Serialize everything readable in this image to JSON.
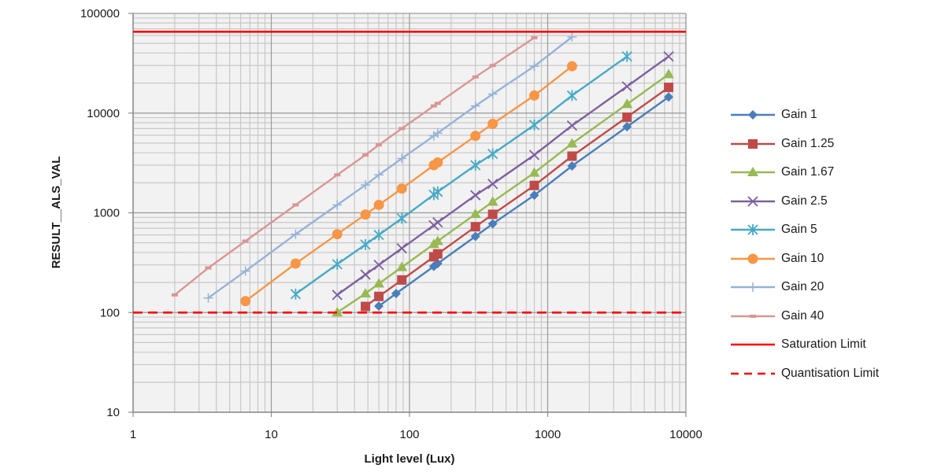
{
  "chart_data": {
    "type": "line",
    "title": "",
    "xlabel": "Light level (Lux)",
    "ylabel": "RESULT__ALS_VAL",
    "xscale": "log",
    "yscale": "log",
    "xlim": [
      1,
      10000
    ],
    "ylim": [
      10,
      100000
    ],
    "x_ticks": [
      "1",
      "10",
      "100",
      "1000",
      "10000"
    ],
    "y_ticks": [
      "10",
      "100",
      "1000",
      "10000",
      "100000"
    ],
    "grid": true,
    "legend_position": "right",
    "series": [
      {
        "name": "Gain 1",
        "color": "#4a7ebb",
        "marker": "diamond",
        "x": [
          60,
          80,
          150,
          160,
          300,
          400,
          800,
          1500,
          3750,
          7500
        ],
        "y": [
          116,
          155,
          290,
          310,
          580,
          775,
          1500,
          2950,
          7300,
          14500
        ]
      },
      {
        "name": "Gain 1.25",
        "color": "#be4b48",
        "marker": "square",
        "x": [
          48,
          60,
          88,
          150,
          160,
          300,
          400,
          800,
          1500,
          3750,
          7500
        ],
        "y": [
          115,
          145,
          212,
          362,
          387,
          725,
          965,
          1880,
          3700,
          9100,
          18100
        ]
      },
      {
        "name": "Gain 1.67",
        "color": "#98b954",
        "marker": "triangle",
        "x": [
          30,
          48,
          60,
          88,
          150,
          160,
          300,
          400,
          800,
          1500,
          3750,
          7500
        ],
        "y": [
          100,
          155,
          195,
          285,
          485,
          520,
          970,
          1290,
          2520,
          4950,
          12300,
          24500
        ]
      },
      {
        "name": "Gain 2.5",
        "color": "#7d60a0",
        "marker": "x",
        "x": [
          30,
          48,
          60,
          88,
          150,
          160,
          300,
          400,
          800,
          1500,
          3750,
          7500
        ],
        "y": [
          150,
          240,
          300,
          440,
          750,
          800,
          1500,
          1950,
          3800,
          7500,
          18500,
          37000
        ]
      },
      {
        "name": "Gain 5",
        "color": "#46aac5",
        "marker": "star",
        "x": [
          15,
          30,
          48,
          60,
          88,
          150,
          160,
          300,
          400,
          800,
          1500,
          3750
        ],
        "y": [
          153,
          305,
          480,
          600,
          880,
          1520,
          1620,
          3000,
          3900,
          7600,
          15000,
          37000
        ]
      },
      {
        "name": "Gain 10",
        "color": "#f79646",
        "marker": "circle",
        "x": [
          6.5,
          15,
          30,
          48,
          60,
          88,
          150,
          160,
          300,
          400,
          800,
          1500
        ],
        "y": [
          130,
          310,
          610,
          960,
          1200,
          1750,
          3000,
          3200,
          5900,
          7800,
          15000,
          29500
        ]
      },
      {
        "name": "Gain 20",
        "color": "#95b3d7",
        "marker": "plus",
        "x": [
          3.5,
          6.5,
          15,
          30,
          48,
          60,
          88,
          150,
          160,
          300,
          400,
          800,
          1500
        ],
        "y": [
          140,
          260,
          610,
          1200,
          1900,
          2400,
          3500,
          5900,
          6300,
          11800,
          15500,
          29500,
          58000
        ]
      },
      {
        "name": "Gain 40",
        "color": "#d99694",
        "marker": "dash",
        "x": [
          2,
          3.5,
          6.5,
          15,
          30,
          48,
          60,
          88,
          150,
          160,
          300,
          400,
          800
        ],
        "y": [
          150,
          280,
          520,
          1200,
          2400,
          3800,
          4800,
          7000,
          11800,
          12500,
          23000,
          30000,
          57000
        ]
      },
      {
        "name": "Saturation Limit",
        "color": "#ff0000",
        "marker": "none",
        "style": "solid",
        "x": [
          1,
          10000
        ],
        "y": [
          65535,
          65535
        ]
      },
      {
        "name": "Quantisation Limit",
        "color": "#ff0000",
        "marker": "none",
        "style": "dashed",
        "x": [
          1,
          10000
        ],
        "y": [
          100,
          100
        ]
      }
    ]
  },
  "legend": {
    "items": [
      {
        "label": "Gain 1"
      },
      {
        "label": "Gain 1.25"
      },
      {
        "label": "Gain 1.67"
      },
      {
        "label": "Gain 2.5"
      },
      {
        "label": "Gain 5"
      },
      {
        "label": "Gain 10"
      },
      {
        "label": "Gain 20"
      },
      {
        "label": "Gain 40"
      },
      {
        "label": "Saturation Limit"
      },
      {
        "label": "Quantisation Limit"
      }
    ]
  }
}
